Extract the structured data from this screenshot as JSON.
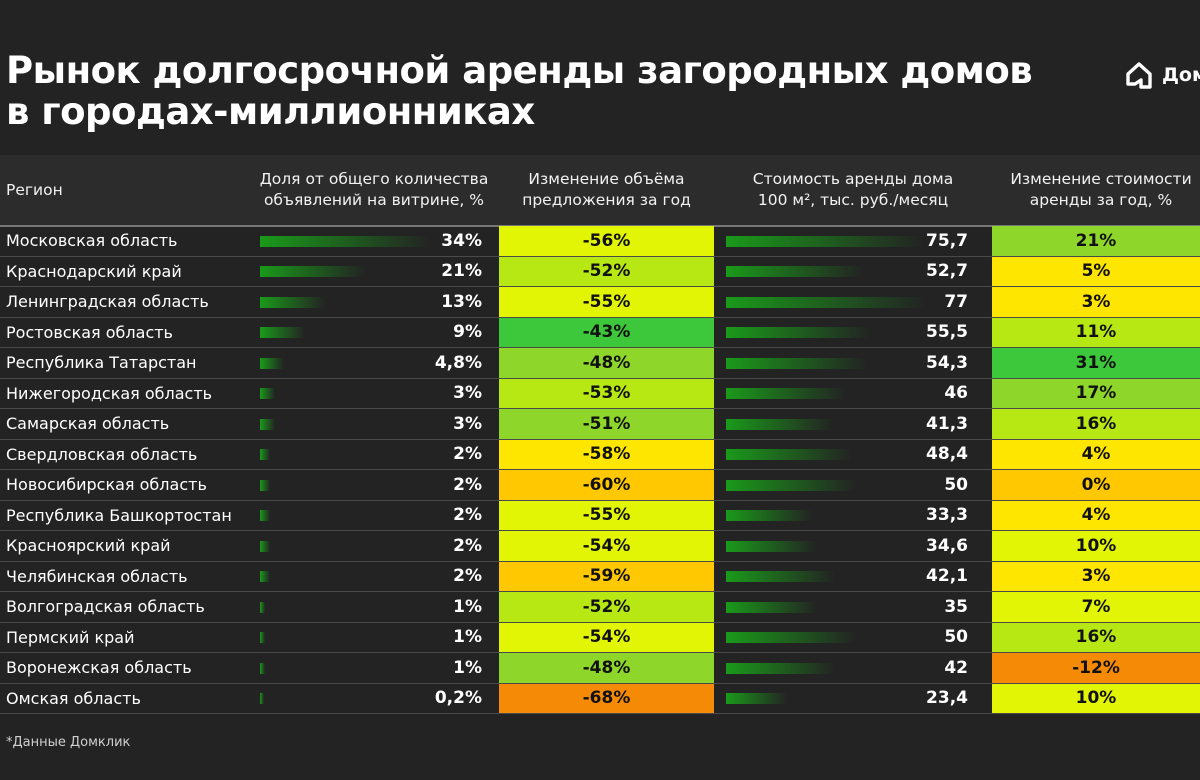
{
  "title_line1": "Рынок долгосрочной аренды загородных домов",
  "title_line2": "в городах-миллионниках",
  "logo": {
    "text": "Дом",
    "icon": "house-logo-icon"
  },
  "footnote": "*Данные Домклик",
  "colors": {
    "background": "#232323",
    "bar_green": "#1a9a1a",
    "heat_scale": [
      "#f58a07",
      "#ffc800",
      "#ffe600",
      "#e1f505",
      "#b7e814",
      "#8ed62a",
      "#3cc83a"
    ]
  },
  "chart_data": {
    "type": "table",
    "columns": [
      "Регион",
      "Доля от общего количества объявлений на витрине, %",
      "Изменение объёма предложения за год",
      "Стоимость аренды дома 100 м², тыс. руб./месяц",
      "Изменение стоимости аренды за год, %"
    ],
    "column_lines": [
      [
        "Регион"
      ],
      [
        "Доля от общего количества",
        "объявлений на витрине, %"
      ],
      [
        "Изменение объёма",
        "предложения за год"
      ],
      [
        "Стоимость аренды дома",
        "100 м², тыс. руб./месяц"
      ],
      [
        "Изменение стоимости",
        "аренды за год, %"
      ]
    ],
    "rows": [
      {
        "region": "Московская область",
        "share_label": "34%",
        "share": 34,
        "volume_label": "-56%",
        "volume": -56,
        "price_label": "75,7",
        "price": 75.7,
        "change_label": "21%",
        "change": 21
      },
      {
        "region": "Краснодарский край",
        "share_label": "21%",
        "share": 21,
        "volume_label": "-52%",
        "volume": -52,
        "price_label": "52,7",
        "price": 52.7,
        "change_label": "5%",
        "change": 5
      },
      {
        "region": "Ленинградская область",
        "share_label": "13%",
        "share": 13,
        "volume_label": "-55%",
        "volume": -55,
        "price_label": "77",
        "price": 77,
        "change_label": "3%",
        "change": 3
      },
      {
        "region": "Ростовская область",
        "share_label": "9%",
        "share": 9,
        "volume_label": "-43%",
        "volume": -43,
        "price_label": "55,5",
        "price": 55.5,
        "change_label": "11%",
        "change": 11
      },
      {
        "region": "Республика Татарстан",
        "share_label": "4,8%",
        "share": 4.8,
        "volume_label": "-48%",
        "volume": -48,
        "price_label": "54,3",
        "price": 54.3,
        "change_label": "31%",
        "change": 31
      },
      {
        "region": "Нижегородская область",
        "share_label": "3%",
        "share": 3,
        "volume_label": "-53%",
        "volume": -53,
        "price_label": "46",
        "price": 46,
        "change_label": "17%",
        "change": 17
      },
      {
        "region": "Самарская область",
        "share_label": "3%",
        "share": 3,
        "volume_label": "-51%",
        "volume": -51,
        "price_label": "41,3",
        "price": 41.3,
        "change_label": "16%",
        "change": 16
      },
      {
        "region": "Свердловская область",
        "share_label": "2%",
        "share": 2,
        "volume_label": "-58%",
        "volume": -58,
        "price_label": "48,4",
        "price": 48.4,
        "change_label": "4%",
        "change": 4
      },
      {
        "region": "Новосибирская область",
        "share_label": "2%",
        "share": 2,
        "volume_label": "-60%",
        "volume": -60,
        "price_label": "50",
        "price": 50,
        "change_label": "0%",
        "change": 0
      },
      {
        "region": "Республика Башкортостан",
        "share_label": "2%",
        "share": 2,
        "volume_label": "-55%",
        "volume": -55,
        "price_label": "33,3",
        "price": 33.3,
        "change_label": "4%",
        "change": 4
      },
      {
        "region": "Красноярский край",
        "share_label": "2%",
        "share": 2,
        "volume_label": "-54%",
        "volume": -54,
        "price_label": "34,6",
        "price": 34.6,
        "change_label": "10%",
        "change": 10
      },
      {
        "region": "Челябинская область",
        "share_label": "2%",
        "share": 2,
        "volume_label": "-59%",
        "volume": -59,
        "price_label": "42,1",
        "price": 42.1,
        "change_label": "3%",
        "change": 3
      },
      {
        "region": "Волгоградская область",
        "share_label": "1%",
        "share": 1,
        "volume_label": "-52%",
        "volume": -52,
        "price_label": "35",
        "price": 35,
        "change_label": "7%",
        "change": 7
      },
      {
        "region": "Пермский край",
        "share_label": "1%",
        "share": 1,
        "volume_label": "-54%",
        "volume": -54,
        "price_label": "50",
        "price": 50,
        "change_label": "16%",
        "change": 16
      },
      {
        "region": "Воронежская область",
        "share_label": "1%",
        "share": 1,
        "volume_label": "-48%",
        "volume": -48,
        "price_label": "42",
        "price": 42,
        "change_label": "-12%",
        "change": -12
      },
      {
        "region": "Омская область",
        "share_label": "0,2%",
        "share": 0.2,
        "volume_label": "-68%",
        "volume": -68,
        "price_label": "23,4",
        "price": 23.4,
        "change_label": "10%",
        "change": 10
      }
    ]
  }
}
